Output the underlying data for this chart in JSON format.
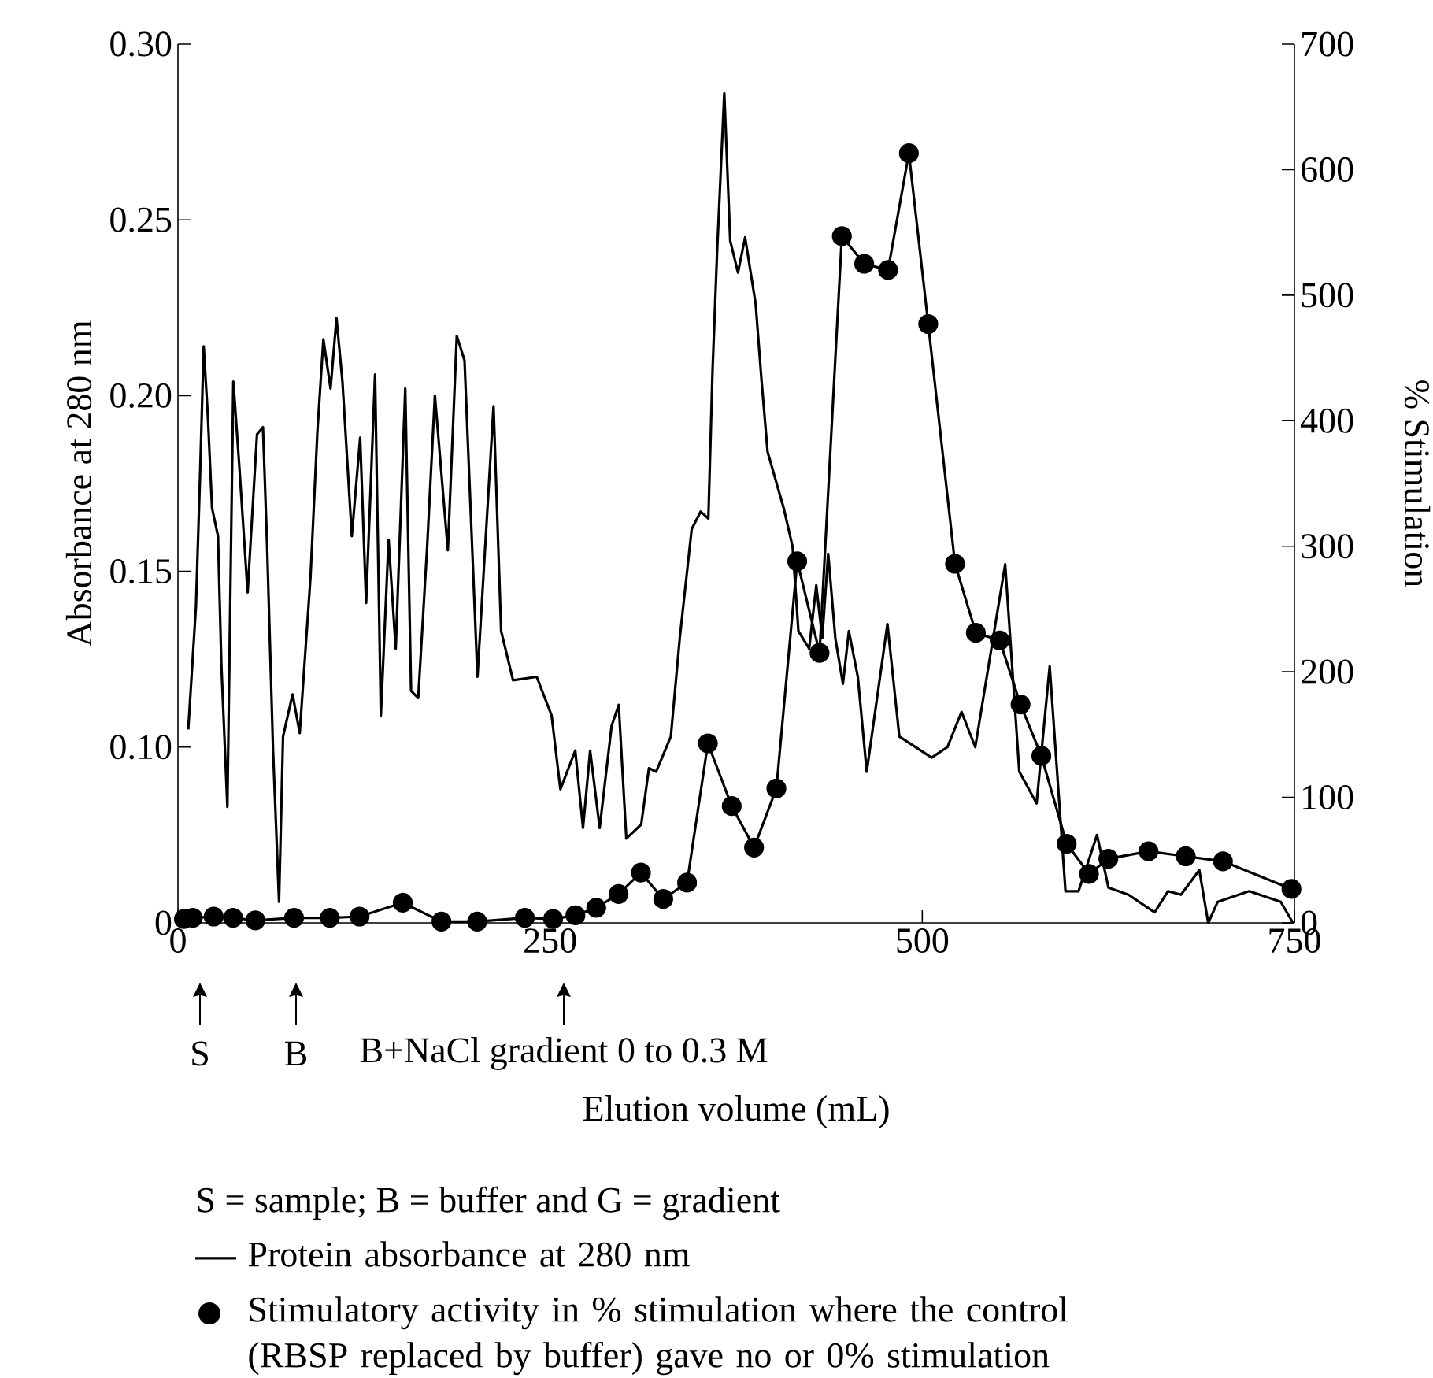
{
  "chart_data": {
    "type": "line",
    "xlabel": "Elution volume (mL)",
    "ylabel": "Absorbance at 280 nm",
    "y2label": "% Stimulation",
    "xlim": [
      0,
      750
    ],
    "xticks": [
      0,
      250,
      500,
      750
    ],
    "ylim": [
      0.05,
      0.3
    ],
    "yticks": [
      {
        "value": 0.05,
        "label": "0"
      },
      {
        "value": 0.1,
        "label": "0.10"
      },
      0.15,
      {
        "value": 0.2,
        "label": "0.20"
      },
      0.25,
      {
        "value": 0.3,
        "label": "0.30"
      }
    ],
    "y2lim": [
      0,
      700
    ],
    "y2ticks": [
      0,
      100,
      200,
      300,
      400,
      500,
      600,
      700
    ],
    "legend": "bottom",
    "series": [
      {
        "name": "Protein absorbance at 280 nm",
        "color": "#000000",
        "marker": "none",
        "x": [
          6.9,
          12.1,
          14.9,
          17.3,
          20.1,
          22.9,
          26.9,
          29.2,
          33.2,
          37.2,
          41.2,
          46.8,
          53.1,
          57.1,
          59.9,
          63.9,
          67.9,
          70.6,
          77.0,
          81.8,
          89.0,
          93.7,
          97.7,
          102.5,
          106.5,
          110.5,
          116.8,
          122.4,
          126.4,
          132.4,
          136.3,
          141.5,
          146.3,
          152.7,
          156.6,
          161.4,
          167.4,
          172.6,
          181.3,
          187.3,
          192.5,
          201.2,
          212.0,
          217.1,
          225.1,
          241.0,
          251.0,
          256.9,
          266.9,
          272.1,
          276.9,
          283.3,
          291.3,
          296.1,
          301.2,
          311.2,
          316.4,
          321.2,
          331.1,
          337.1,
          345.1,
          351.1,
          356.3,
          359.1,
          362.2,
          367.0,
          371.0,
          376.2,
          381.0,
          388.1,
          392.1,
          396.1,
          406.9,
          412.9,
          416.8,
          424.0,
          428.8,
          432.8,
          436.8,
          441.6,
          446.7,
          450.7,
          456.7,
          462.7,
          476.6,
          484.6,
          506.3,
          516.9,
          526.4,
          535.6,
          555.7,
          565.2,
          576.8,
          585.6,
          596.2,
          605.0,
          617.4,
          625.1,
          638.5,
          656.1,
          665.0,
          673.8,
          686.1,
          692.1,
          698.5,
          719.6,
          740.8,
          749
        ],
        "values": [
          0.105,
          0.14,
          0.178,
          0.214,
          0.194,
          0.168,
          0.16,
          0.123,
          0.083,
          0.204,
          0.18,
          0.144,
          0.189,
          0.191,
          0.157,
          0.099,
          0.056,
          0.103,
          0.115,
          0.104,
          0.148,
          0.19,
          0.216,
          0.202,
          0.222,
          0.204,
          0.16,
          0.188,
          0.141,
          0.206,
          0.109,
          0.159,
          0.128,
          0.202,
          0.116,
          0.114,
          0.157,
          0.2,
          0.156,
          0.217,
          0.21,
          0.12,
          0.197,
          0.133,
          0.119,
          0.12,
          0.109,
          0.088,
          0.099,
          0.077,
          0.099,
          0.077,
          0.106,
          0.112,
          0.074,
          0.078,
          0.094,
          0.093,
          0.103,
          0.131,
          0.162,
          0.167,
          0.165,
          0.207,
          0.241,
          0.286,
          0.244,
          0.235,
          0.245,
          0.226,
          0.204,
          0.184,
          0.168,
          0.157,
          0.133,
          0.128,
          0.146,
          0.131,
          0.155,
          0.131,
          0.118,
          0.133,
          0.12,
          0.093,
          0.135,
          0.103,
          0.097,
          0.1,
          0.11,
          0.1,
          0.152,
          0.093,
          0.084,
          0.123,
          0.059,
          0.059,
          0.075,
          0.06,
          0.058,
          0.053,
          0.059,
          0.058,
          0.065,
          0.05,
          0.056,
          0.059,
          0.056,
          0.05
        ]
      },
      {
        "name": "Stimulatory activity in % stimulation where the control (RBSP replaced by buffer) gave no or 0% stimulation",
        "axis": "y2",
        "color": "#000000",
        "marker": "circle",
        "x": [
          4,
          10,
          24,
          37,
          52,
          78,
          102,
          122,
          151,
          177,
          201,
          233,
          252,
          267,
          281,
          296,
          311,
          326,
          342,
          356,
          372,
          387,
          402,
          416,
          431,
          446,
          461,
          477,
          491,
          504,
          522,
          536,
          552,
          566,
          580,
          597,
          612,
          625,
          652,
          677,
          702,
          748
        ],
        "values": [
          3,
          4,
          5,
          4,
          2,
          4,
          4,
          5,
          16,
          1,
          1,
          4,
          3,
          6,
          12,
          23,
          40,
          19,
          32,
          143,
          93,
          60,
          107,
          288,
          215,
          547,
          525,
          520,
          613,
          477,
          286,
          231,
          225,
          174,
          133,
          63,
          39,
          51,
          57,
          53,
          49,
          27
        ]
      }
    ],
    "annotations": [
      "S",
      "B",
      "B+NaCl gradient 0 to 0.3 M",
      "S = sample; B = buffer and G = gradient"
    ]
  }
}
